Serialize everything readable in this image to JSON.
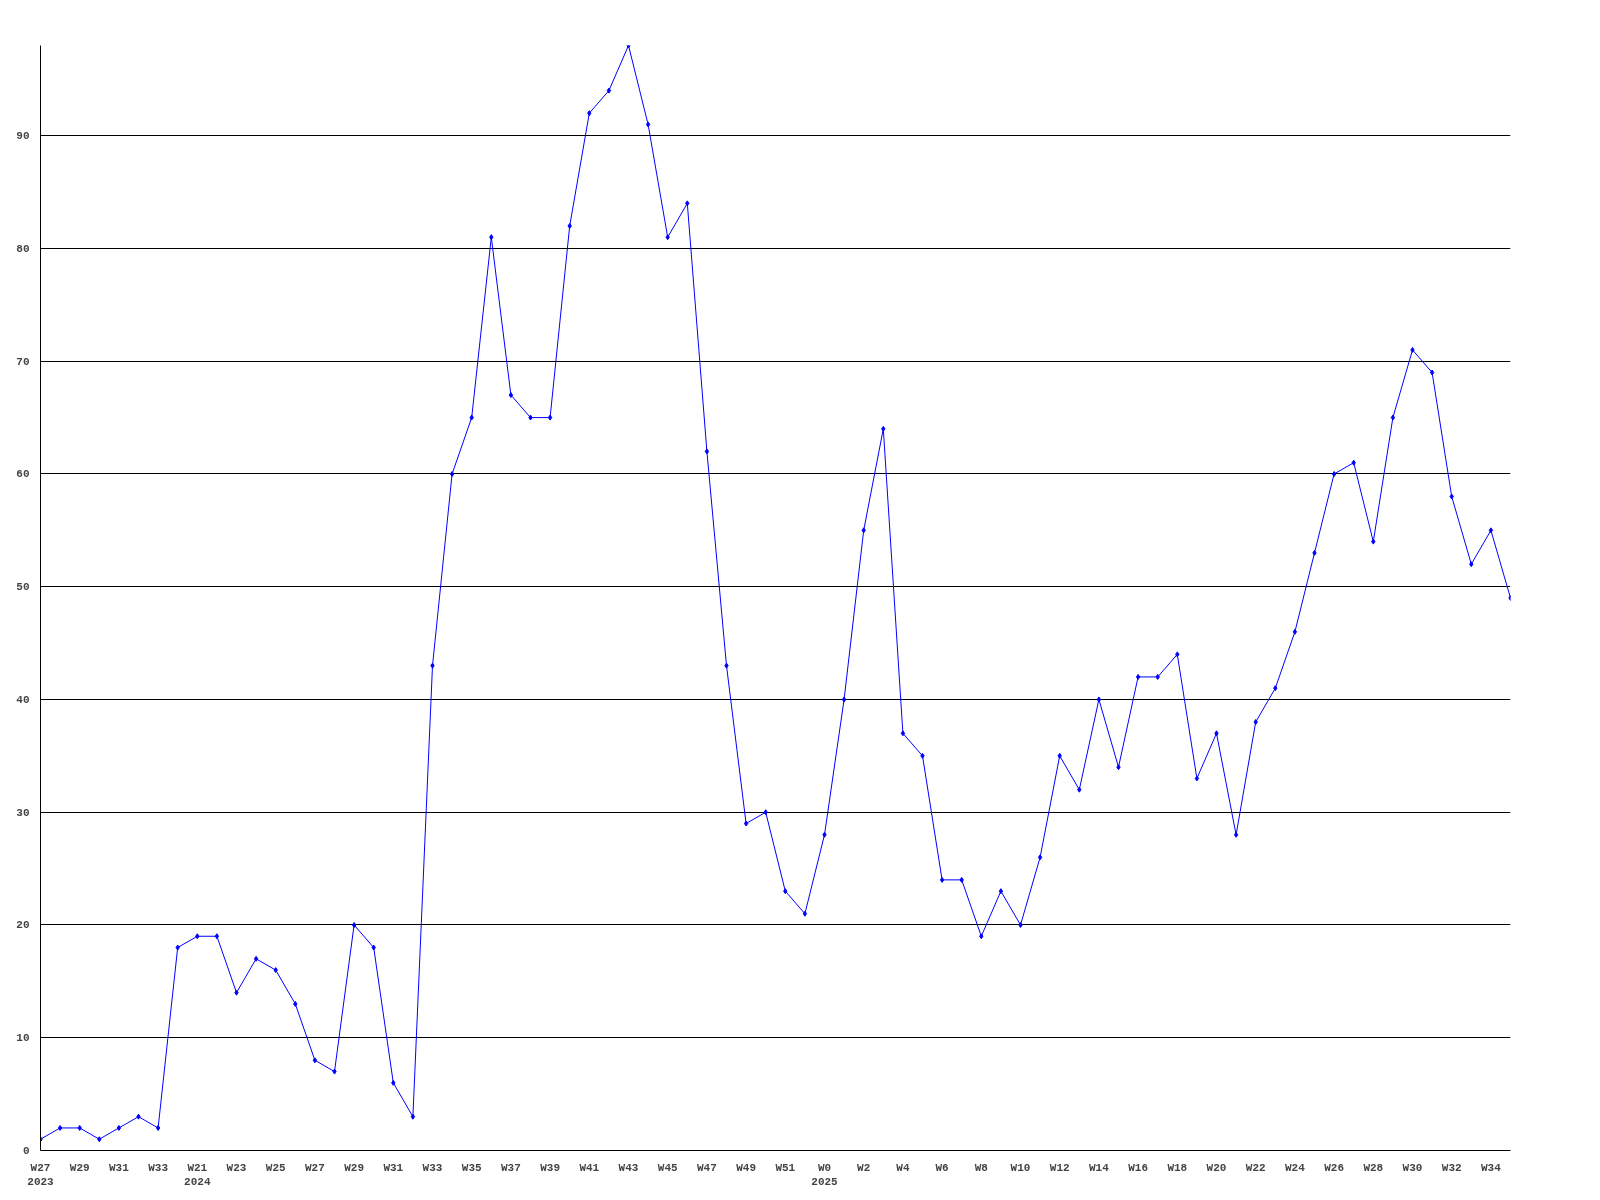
{
  "chart_data": {
    "type": "line",
    "categories": [
      "W27\n2023",
      null,
      "W29",
      null,
      "W31",
      null,
      "W33",
      null,
      "W21\n2024",
      null,
      "W23",
      null,
      "W25",
      null,
      "W27",
      null,
      "W29",
      null,
      "W31",
      null,
      "W33",
      null,
      "W35",
      null,
      "W37",
      null,
      "W39",
      null,
      "W41",
      null,
      "W43",
      null,
      "W45",
      null,
      "W47",
      null,
      "W49",
      null,
      "W51",
      null,
      "W0\n2025",
      null,
      "W2",
      null,
      "W4",
      null,
      "W6",
      null,
      "W8",
      null,
      "W10",
      null,
      "W12",
      null,
      "W14",
      null,
      "W16",
      null,
      "W18",
      null,
      "W20",
      null,
      "W22",
      null,
      "W24",
      null,
      "W26",
      null,
      "W28",
      null,
      "W30",
      null,
      "W32",
      null,
      "W34",
      null
    ],
    "series": [
      {
        "color": "#0000ff",
        "values": [
          1,
          2,
          2,
          1,
          2,
          3,
          2,
          18,
          19,
          19,
          14,
          17,
          16,
          13,
          8,
          7,
          20,
          18,
          6,
          3,
          43,
          60,
          65,
          81,
          67,
          65,
          65,
          82,
          92,
          94,
          98,
          91,
          81,
          84,
          62,
          43,
          29,
          30,
          23,
          21,
          28,
          40,
          55,
          64,
          37,
          35,
          24,
          24,
          19,
          23,
          20,
          26,
          35,
          32,
          40,
          34,
          42,
          42,
          44,
          33,
          37,
          28,
          38,
          41,
          46,
          53,
          60,
          61,
          54,
          65,
          71,
          69,
          58,
          52,
          55,
          49
        ]
      }
    ],
    "ylim": [
      0,
      98
    ],
    "yticks": [
      0,
      10,
      20,
      30,
      40,
      50,
      60,
      70,
      80,
      90
    ],
    "grid": "y",
    "marker": "diamond",
    "line_style": "solid"
  }
}
